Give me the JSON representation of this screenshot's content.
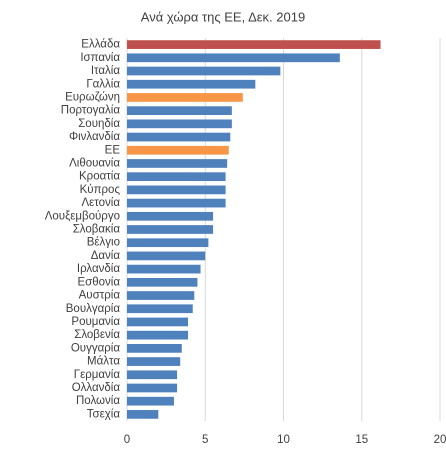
{
  "chart_data": {
    "type": "barh",
    "title": "Ανά χώρα της ΕΕ, Δεκ. 2019",
    "categories": [
      "Ελλάδα",
      "Ισπανία",
      "Ιταλία",
      "Γαλλία",
      "Ευρωζώνη",
      "Πορτογαλία",
      "Σουηδία",
      "Φινλανδία",
      "ΕΕ",
      "Λιθουανία",
      "Κροατία",
      "Κύπρος",
      "Λετονία",
      "Λουξεμβούργο",
      "Σλοβακία",
      "Βέλγιο",
      "Δανία",
      "Ιρλανδία",
      "Εσθονία",
      "Αυστρία",
      "Βουλγαρία",
      "Ρουμανία",
      "Σλοβενία",
      "Ουγγαρία",
      "Μάλτα",
      "Γερμανία",
      "Ολλανδία",
      "Πολωνία",
      "Τσεχία"
    ],
    "values": [
      16.2,
      13.6,
      9.8,
      8.2,
      7.4,
      6.7,
      6.7,
      6.6,
      6.5,
      6.4,
      6.3,
      6.3,
      6.3,
      5.5,
      5.5,
      5.2,
      5.0,
      4.7,
      4.5,
      4.3,
      4.2,
      3.9,
      3.9,
      3.5,
      3.4,
      3.2,
      3.2,
      3.0,
      2.0
    ],
    "colors": [
      "#c0504d",
      "#4f81bd",
      "#4f81bd",
      "#4f81bd",
      "#f79646",
      "#4f81bd",
      "#4f81bd",
      "#4f81bd",
      "#f79646",
      "#4f81bd",
      "#4f81bd",
      "#4f81bd",
      "#4f81bd",
      "#4f81bd",
      "#4f81bd",
      "#4f81bd",
      "#4f81bd",
      "#4f81bd",
      "#4f81bd",
      "#4f81bd",
      "#4f81bd",
      "#4f81bd",
      "#4f81bd",
      "#4f81bd",
      "#4f81bd",
      "#4f81bd",
      "#4f81bd",
      "#4f81bd",
      "#4f81bd"
    ],
    "xlim": [
      0,
      20
    ],
    "xticks": [
      0,
      5,
      10,
      15,
      20
    ],
    "grid": true
  }
}
